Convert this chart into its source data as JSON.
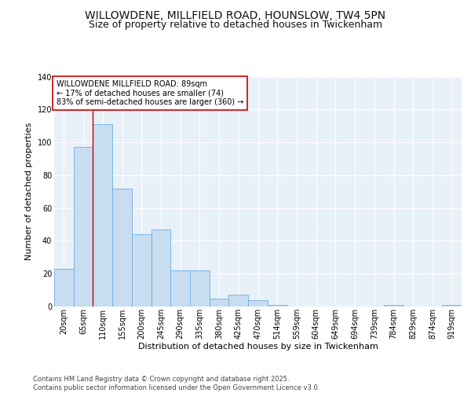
{
  "title1": "WILLOWDENE, MILLFIELD ROAD, HOUNSLOW, TW4 5PN",
  "title2": "Size of property relative to detached houses in Twickenham",
  "xlabel": "Distribution of detached houses by size in Twickenham",
  "ylabel": "Number of detached properties",
  "categories": [
    "20sqm",
    "65sqm",
    "110sqm",
    "155sqm",
    "200sqm",
    "245sqm",
    "290sqm",
    "335sqm",
    "380sqm",
    "425sqm",
    "470sqm",
    "514sqm",
    "559sqm",
    "604sqm",
    "649sqm",
    "694sqm",
    "739sqm",
    "784sqm",
    "829sqm",
    "874sqm",
    "919sqm"
  ],
  "values": [
    23,
    97,
    111,
    72,
    44,
    47,
    22,
    22,
    5,
    7,
    4,
    1,
    0,
    0,
    0,
    0,
    0,
    1,
    0,
    0,
    1
  ],
  "bar_color": "#c9ddf0",
  "bar_edge_color": "#6aaee8",
  "vline_x": 1.5,
  "vline_color": "#cc0000",
  "annotation_text": "WILLOWDENE MILLFIELD ROAD: 89sqm\n← 17% of detached houses are smaller (74)\n83% of semi-detached houses are larger (360) →",
  "annotation_box_color": "#ffffff",
  "annotation_box_edge": "#cc0000",
  "ylim": [
    0,
    140
  ],
  "yticks": [
    0,
    20,
    40,
    60,
    80,
    100,
    120,
    140
  ],
  "footer": "Contains HM Land Registry data © Crown copyright and database right 2025.\nContains public sector information licensed under the Open Government Licence v3.0.",
  "fig_bg_color": "#ffffff",
  "plot_bg_color": "#e8f0f8",
  "grid_color": "#ffffff",
  "title_fontsize": 10,
  "subtitle_fontsize": 9,
  "label_fontsize": 8,
  "tick_fontsize": 7,
  "annotation_fontsize": 7,
  "footer_fontsize": 6
}
